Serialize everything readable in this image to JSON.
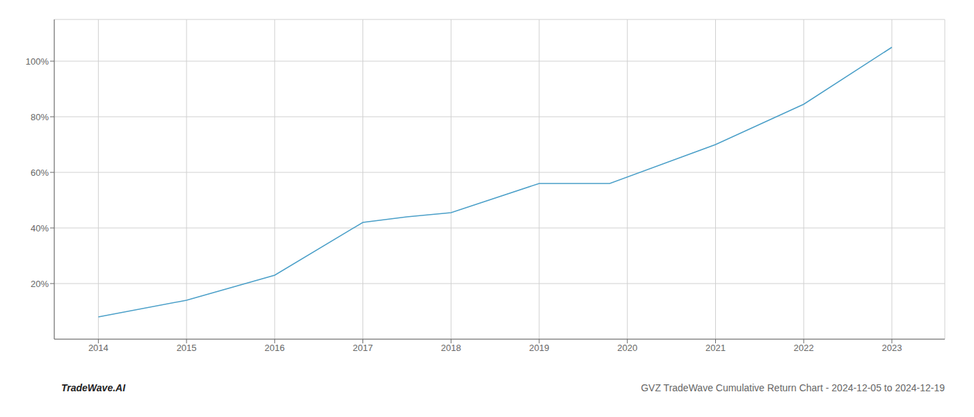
{
  "chart_data": {
    "type": "line",
    "title": "GVZ TradeWave Cumulative Return Chart - 2024-12-05 to 2024-12-19",
    "annotations": [
      "TradeWave.AI"
    ],
    "x": [
      2014,
      2015,
      2016,
      2017,
      2017.5,
      2018,
      2019,
      2019.8,
      2021,
      2022,
      2023
    ],
    "values": [
      0.08,
      0.14,
      0.23,
      0.42,
      0.44,
      0.455,
      0.56,
      0.56,
      0.7,
      0.845,
      1.05
    ],
    "color": "#4a9fc8",
    "xlim": [
      2013.5,
      2023.6
    ],
    "ylim": [
      0.0,
      1.15
    ],
    "xticks": [
      2014,
      2015,
      2016,
      2017,
      2018,
      2019,
      2020,
      2021,
      2022,
      2023
    ],
    "yticks": [
      {
        "value": 0.2,
        "label": "20%"
      },
      {
        "value": 0.4,
        "label": "40%"
      },
      {
        "value": 0.6,
        "label": "60%"
      },
      {
        "value": 0.8,
        "label": "80%"
      },
      {
        "value": 1.0,
        "label": "100%"
      }
    ],
    "grid": true
  }
}
